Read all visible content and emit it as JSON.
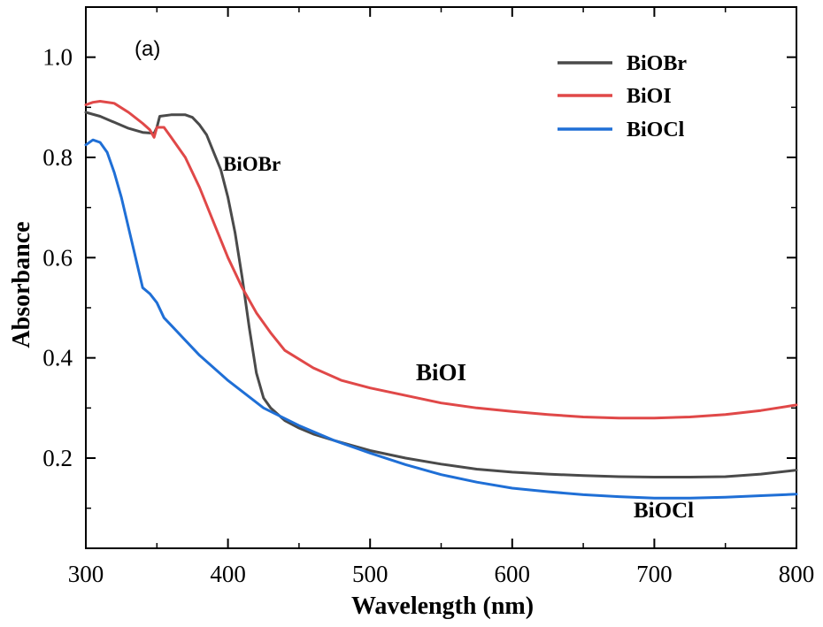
{
  "chart_data": {
    "type": "line",
    "title": "",
    "panel_label": "(a)",
    "xlabel": "Wavelength (nm)",
    "ylabel": "Absorbance",
    "xlim": [
      300,
      800
    ],
    "ylim": [
      0.02,
      1.1
    ],
    "xticks": [
      300,
      400,
      500,
      600,
      700,
      800
    ],
    "yticks": [
      0.2,
      0.4,
      0.6,
      0.8,
      1.0
    ],
    "ytick_labels": [
      "0.2",
      "0.4",
      "0.6",
      "0.8",
      "1.0"
    ],
    "grid": false,
    "legend_position": "top-right",
    "series": [
      {
        "name": "BiOBr",
        "color": "#4a4a4a",
        "x": [
          300,
          310,
          320,
          330,
          340,
          348,
          350,
          352,
          360,
          370,
          375,
          380,
          385,
          390,
          395,
          400,
          405,
          410,
          415,
          420,
          425,
          430,
          440,
          450,
          460,
          475,
          500,
          525,
          550,
          575,
          600,
          625,
          650,
          675,
          700,
          725,
          750,
          775,
          800
        ],
        "y": [
          0.89,
          0.882,
          0.87,
          0.858,
          0.85,
          0.848,
          0.86,
          0.882,
          0.885,
          0.885,
          0.88,
          0.865,
          0.845,
          0.81,
          0.775,
          0.72,
          0.65,
          0.56,
          0.46,
          0.37,
          0.32,
          0.3,
          0.275,
          0.26,
          0.248,
          0.235,
          0.215,
          0.2,
          0.188,
          0.178,
          0.172,
          0.168,
          0.165,
          0.163,
          0.162,
          0.162,
          0.163,
          0.168,
          0.176
        ]
      },
      {
        "name": "BiOI",
        "color": "#e04848",
        "x": [
          300,
          305,
          310,
          320,
          330,
          340,
          345,
          348,
          350,
          355,
          360,
          370,
          380,
          390,
          400,
          410,
          420,
          430,
          440,
          460,
          480,
          500,
          525,
          550,
          575,
          600,
          625,
          650,
          675,
          700,
          725,
          750,
          775,
          800
        ],
        "y": [
          0.905,
          0.91,
          0.912,
          0.908,
          0.89,
          0.868,
          0.855,
          0.84,
          0.86,
          0.86,
          0.84,
          0.8,
          0.74,
          0.67,
          0.6,
          0.54,
          0.49,
          0.45,
          0.415,
          0.38,
          0.355,
          0.34,
          0.325,
          0.31,
          0.3,
          0.293,
          0.287,
          0.282,
          0.28,
          0.28,
          0.282,
          0.287,
          0.295,
          0.306
        ]
      },
      {
        "name": "BiOCl",
        "color": "#1f6fd6",
        "x": [
          300,
          305,
          310,
          315,
          320,
          325,
          330,
          335,
          340,
          345,
          350,
          355,
          360,
          370,
          380,
          400,
          425,
          450,
          475,
          500,
          525,
          550,
          575,
          600,
          625,
          650,
          675,
          700,
          725,
          750,
          775,
          800
        ],
        "y": [
          0.825,
          0.835,
          0.83,
          0.81,
          0.77,
          0.72,
          0.66,
          0.6,
          0.54,
          0.528,
          0.51,
          0.48,
          0.465,
          0.435,
          0.405,
          0.355,
          0.3,
          0.265,
          0.235,
          0.21,
          0.187,
          0.167,
          0.152,
          0.14,
          0.133,
          0.127,
          0.123,
          0.12,
          0.12,
          0.122,
          0.125,
          0.128
        ]
      }
    ],
    "annotations": [
      {
        "text": "BiOBr",
        "x": 398,
        "y": 0.77
      },
      {
        "text": "BiOI",
        "x": 550,
        "y": 0.31
      },
      {
        "text": "BiOCl",
        "x": 725,
        "y": 0.045
      }
    ]
  }
}
